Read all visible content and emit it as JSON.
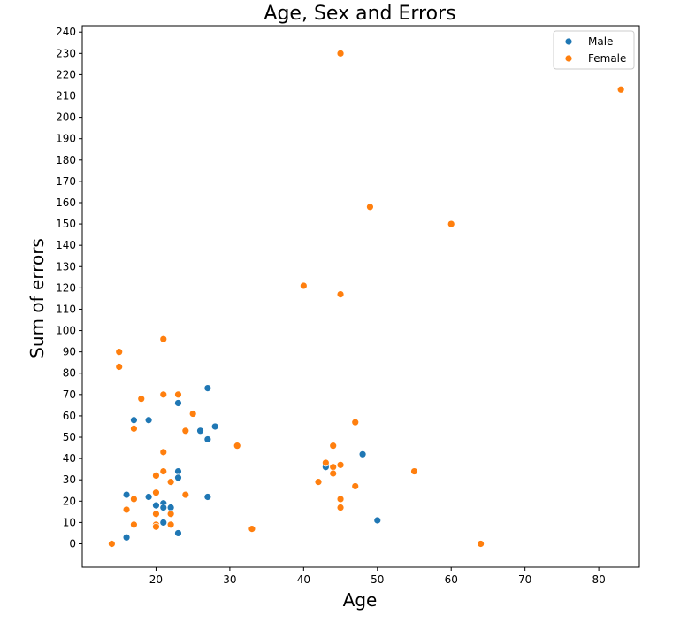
{
  "chart_data": {
    "type": "scatter",
    "title": "Age, Sex and Errors",
    "xlabel": "Age",
    "ylabel": "Sum of errors",
    "xlim": [
      10,
      85.5
    ],
    "ylim": [
      -11,
      243
    ],
    "xticks": [
      20,
      30,
      40,
      50,
      60,
      70,
      80
    ],
    "yticks": [
      0,
      10,
      20,
      30,
      40,
      50,
      60,
      70,
      80,
      90,
      100,
      110,
      120,
      130,
      140,
      150,
      160,
      170,
      180,
      190,
      200,
      210,
      220,
      230,
      240
    ],
    "grid": false,
    "legend_position": "top-right",
    "series": [
      {
        "name": "Male",
        "color": "#1f77b4",
        "points": [
          [
            16,
            3
          ],
          [
            16,
            23
          ],
          [
            17,
            58
          ],
          [
            19,
            58
          ],
          [
            19,
            22
          ],
          [
            20,
            18
          ],
          [
            21,
            19
          ],
          [
            21,
            17
          ],
          [
            21,
            10
          ],
          [
            22,
            17
          ],
          [
            23,
            66
          ],
          [
            23,
            34
          ],
          [
            23,
            31
          ],
          [
            23,
            5
          ],
          [
            26,
            53
          ],
          [
            27,
            73
          ],
          [
            27,
            49
          ],
          [
            27,
            22
          ],
          [
            28,
            55
          ],
          [
            43,
            36
          ],
          [
            48,
            42
          ],
          [
            50,
            11
          ]
        ]
      },
      {
        "name": "Female",
        "color": "#ff7f0e",
        "points": [
          [
            14,
            0
          ],
          [
            15,
            90
          ],
          [
            15,
            83
          ],
          [
            16,
            16
          ],
          [
            17,
            54
          ],
          [
            17,
            21
          ],
          [
            17,
            9
          ],
          [
            18,
            68
          ],
          [
            20,
            32
          ],
          [
            20,
            24
          ],
          [
            20,
            14
          ],
          [
            20,
            9
          ],
          [
            20,
            8
          ],
          [
            21,
            96
          ],
          [
            21,
            70
          ],
          [
            21,
            43
          ],
          [
            21,
            34
          ],
          [
            22,
            29
          ],
          [
            22,
            14
          ],
          [
            22,
            9
          ],
          [
            23,
            70
          ],
          [
            24,
            53
          ],
          [
            24,
            23
          ],
          [
            25,
            61
          ],
          [
            31,
            46
          ],
          [
            33,
            7
          ],
          [
            40,
            121
          ],
          [
            42,
            29
          ],
          [
            43,
            38
          ],
          [
            44,
            46
          ],
          [
            44,
            36
          ],
          [
            44,
            33
          ],
          [
            45,
            230
          ],
          [
            45,
            117
          ],
          [
            45,
            37
          ],
          [
            45,
            21
          ],
          [
            45,
            17
          ],
          [
            47,
            57
          ],
          [
            47,
            27
          ],
          [
            49,
            158
          ],
          [
            55,
            34
          ],
          [
            60,
            150
          ],
          [
            64,
            0
          ],
          [
            83,
            213
          ]
        ]
      }
    ]
  }
}
